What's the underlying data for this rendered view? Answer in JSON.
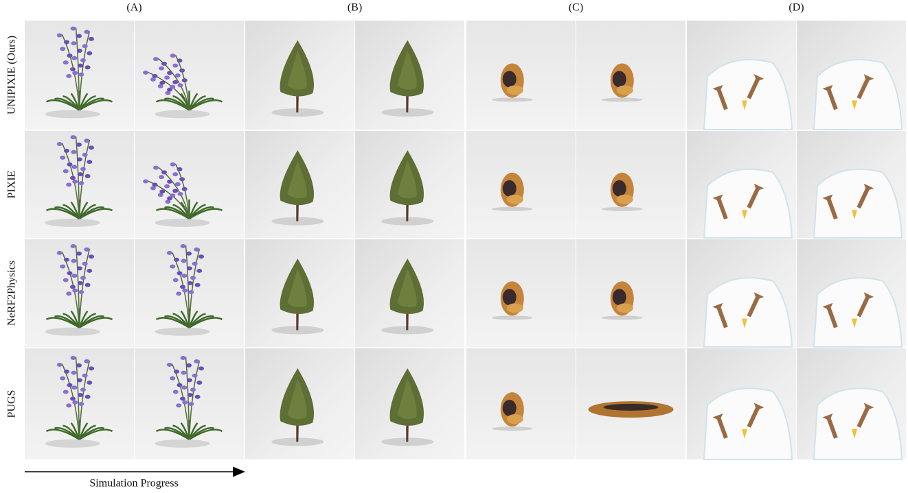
{
  "columns": [
    "(A)",
    "(B)",
    "(C)",
    "(D)"
  ],
  "rows": [
    "UNIPIXIE (Ours)",
    "PIXIE",
    "NeRF2Physics",
    "PUGS"
  ],
  "footer": {
    "caption": "Simulation Progress"
  }
}
